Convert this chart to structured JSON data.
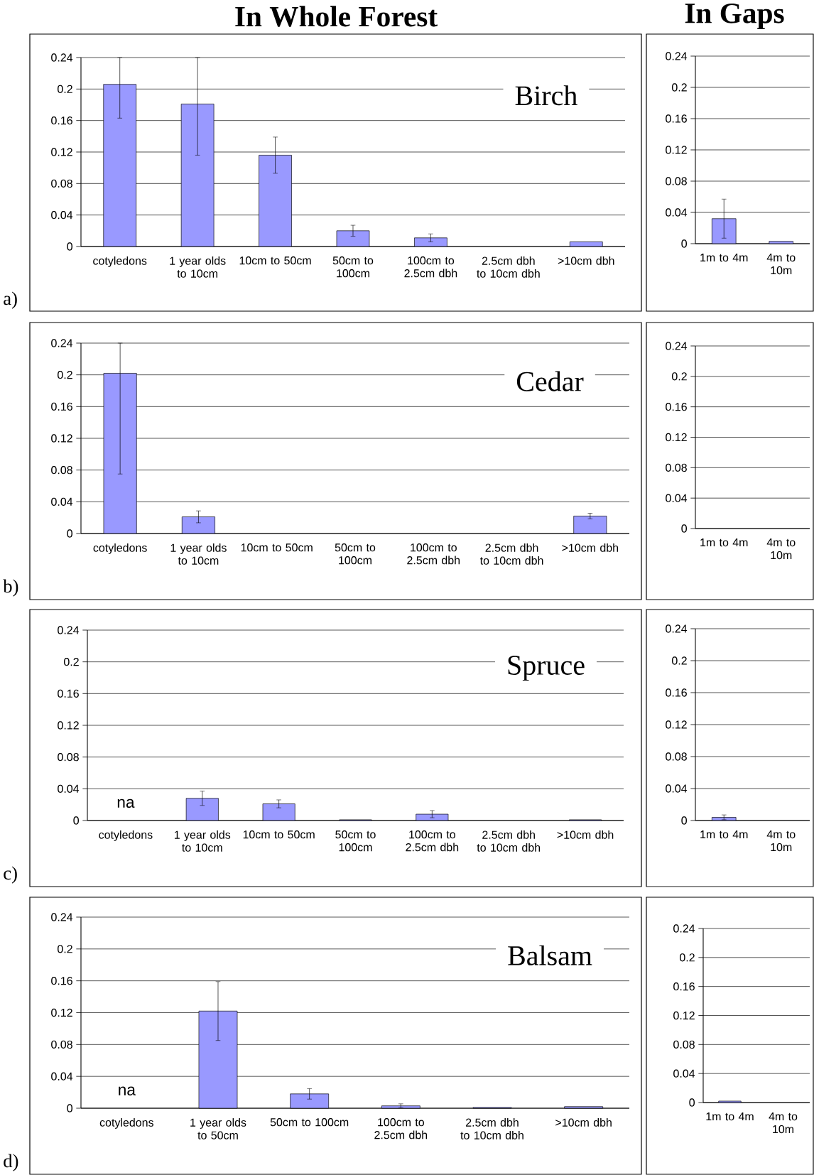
{
  "chart_data": [
    {
      "type": "bar",
      "title": "In Whole Forest",
      "categories": [
        "cotyledons",
        "1 year olds to 10cm",
        "10cm to 50cm",
        "50cm to 100cm",
        "100cm to 2.5cm dbh",
        "2.5cm dbh to 10cm dbh",
        ">10cm dbh"
      ],
      "values": [
        0.206,
        0.181,
        0.116,
        0.02,
        0.011,
        null,
        0.006
      ],
      "errors": [
        [
          0.163,
          0.24
        ],
        [
          0.116,
          0.24
        ],
        0.023,
        0.007,
        0.005,
        null,
        null
      ],
      "color": "#9999ff",
      "ylim": [
        0,
        0.24
      ],
      "yticks": [
        0,
        0.04,
        0.08,
        0.12,
        0.16,
        0.2,
        0.24
      ],
      "grid": "y",
      "annotations": [
        "Birch",
        "a)"
      ]
    },
    {
      "type": "bar",
      "title": "In Gaps",
      "categories": [
        "1m to 4m",
        "4m to 10m"
      ],
      "values": [
        0.032,
        0.003
      ],
      "errors": [
        0.025,
        null
      ],
      "color": "#9999ff",
      "ylim": [
        0,
        0.24
      ],
      "yticks": [
        0,
        0.04,
        0.08,
        0.12,
        0.16,
        0.2,
        0.24
      ],
      "grid": "y"
    },
    {
      "type": "bar",
      "categories": [
        "cotyledons",
        "1 year olds to 10cm",
        "10cm to 50cm",
        "50cm to 100cm",
        "100cm to 2.5cm dbh",
        "2.5cm dbh to 10cm dbh",
        ">10cm dbh"
      ],
      "values": [
        0.202,
        0.021,
        null,
        null,
        null,
        null,
        0.022
      ],
      "errors": [
        [
          0.075,
          0.24
        ],
        0.0075,
        null,
        null,
        null,
        null,
        0.0035
      ],
      "color": "#9999ff",
      "ylim": [
        0,
        0.24
      ],
      "yticks": [
        0,
        0.04,
        0.08,
        0.12,
        0.16,
        0.2,
        0.24
      ],
      "grid": "y",
      "annotations": [
        "Cedar",
        "b)"
      ]
    },
    {
      "type": "bar",
      "categories": [
        "1m to 4m",
        "4m to 10m"
      ],
      "values": [
        null,
        null
      ],
      "color": "#9999ff",
      "ylim": [
        0,
        0.24
      ],
      "yticks": [
        0,
        0.04,
        0.08,
        0.12,
        0.16,
        0.2,
        0.24
      ],
      "grid": "y"
    },
    {
      "type": "bar",
      "categories": [
        "cotyledons",
        "1 year olds to 10cm",
        "10cm to 50cm",
        "50cm to 100cm",
        "100cm to 2.5cm dbh",
        "2.5cm dbh to 10cm dbh",
        ">10cm dbh"
      ],
      "values": [
        null,
        0.028,
        0.021,
        0.001,
        0.008,
        null,
        0.001
      ],
      "errors": [
        null,
        0.009,
        0.005,
        null,
        0.0045,
        null,
        null
      ],
      "color": "#9999ff",
      "ylim": [
        0,
        0.24
      ],
      "yticks": [
        0,
        0.04,
        0.08,
        0.12,
        0.16,
        0.2,
        0.24
      ],
      "grid": "y",
      "annotations": [
        "Spruce",
        "c)",
        "na"
      ]
    },
    {
      "type": "bar",
      "categories": [
        "1m to 4m",
        "4m to 10m"
      ],
      "values": [
        0.004,
        null
      ],
      "errors": [
        0.003,
        null
      ],
      "color": "#9999ff",
      "ylim": [
        0,
        0.24
      ],
      "yticks": [
        0,
        0.04,
        0.08,
        0.12,
        0.16,
        0.2,
        0.24
      ],
      "grid": "y"
    },
    {
      "type": "bar",
      "categories": [
        "cotyledons",
        "1 year olds to 50cm",
        "50cm to 100cm",
        "100cm to 2.5cm dbh",
        "2.5cm dbh to 10cm dbh",
        ">10cm dbh"
      ],
      "values": [
        null,
        0.122,
        0.018,
        0.003,
        0.001,
        0.002
      ],
      "errors": [
        null,
        0.037,
        0.0066,
        0.0025,
        null,
        null
      ],
      "color": "#9999ff",
      "ylim": [
        0,
        0.24
      ],
      "yticks": [
        0,
        0.04,
        0.08,
        0.12,
        0.16,
        0.2,
        0.24
      ],
      "grid": "y",
      "annotations": [
        "Balsam",
        "d)",
        "na"
      ]
    },
    {
      "type": "bar",
      "categories": [
        "1m to 4m",
        "4m to 10m"
      ],
      "values": [
        0.002,
        null
      ],
      "color": "#9999ff",
      "ylim": [
        0,
        0.24
      ],
      "yticks": [
        0,
        0.04,
        0.08,
        0.12,
        0.16,
        0.2,
        0.24
      ],
      "grid": "y"
    }
  ]
}
